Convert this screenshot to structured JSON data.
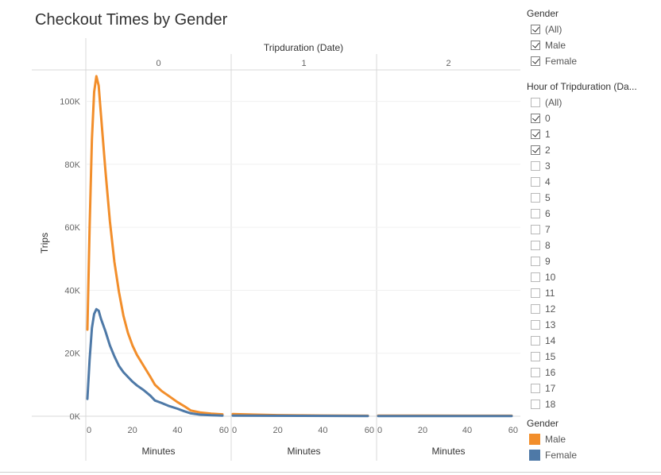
{
  "title": "Checkout Times by Gender",
  "filters": {
    "gender": {
      "title": "Gender",
      "items": [
        {
          "label": "(All)",
          "checked": true
        },
        {
          "label": "Male",
          "checked": true
        },
        {
          "label": "Female",
          "checked": true
        }
      ]
    },
    "hour": {
      "title": "Hour of Tripduration (Da...",
      "items": [
        {
          "label": "(All)",
          "checked": false
        },
        {
          "label": "0",
          "checked": true
        },
        {
          "label": "1",
          "checked": true
        },
        {
          "label": "2",
          "checked": true
        },
        {
          "label": "3",
          "checked": false
        },
        {
          "label": "4",
          "checked": false
        },
        {
          "label": "5",
          "checked": false
        },
        {
          "label": "6",
          "checked": false
        },
        {
          "label": "7",
          "checked": false
        },
        {
          "label": "8",
          "checked": false
        },
        {
          "label": "9",
          "checked": false
        },
        {
          "label": "10",
          "checked": false
        },
        {
          "label": "11",
          "checked": false
        },
        {
          "label": "12",
          "checked": false
        },
        {
          "label": "13",
          "checked": false
        },
        {
          "label": "14",
          "checked": false
        },
        {
          "label": "15",
          "checked": false
        },
        {
          "label": "16",
          "checked": false
        },
        {
          "label": "17",
          "checked": false
        },
        {
          "label": "18",
          "checked": false
        }
      ]
    }
  },
  "legend": {
    "title": "Gender",
    "items": [
      {
        "label": "Male",
        "color": "#f28e2b"
      },
      {
        "label": "Female",
        "color": "#4e79a7"
      }
    ]
  },
  "chart_data": {
    "type": "line",
    "title": "Checkout Times by Gender",
    "column_header": "Tripduration (Date)",
    "panes": [
      "0",
      "1",
      "2"
    ],
    "xlabel": "Minutes",
    "ylabel": "Trips",
    "xlim": [
      0,
      60
    ],
    "ylim": [
      0,
      110000
    ],
    "xticks": [
      "0",
      "20",
      "40",
      "60"
    ],
    "yticks": [
      {
        "value": 0,
        "label": "0K"
      },
      {
        "value": 20000,
        "label": "20K"
      },
      {
        "value": 40000,
        "label": "40K"
      },
      {
        "value": 60000,
        "label": "60K"
      },
      {
        "value": 80000,
        "label": "80K"
      },
      {
        "value": 100000,
        "label": "100K"
      }
    ],
    "grid": true,
    "series": [
      {
        "name": "Male",
        "color": "#f28e2b",
        "panes": [
          {
            "x": [
              0,
              1,
              2,
              3,
              4,
              5,
              6,
              8,
              10,
              12,
              14,
              16,
              18,
              20,
              22,
              25,
              28,
              30,
              33,
              36,
              40,
              43,
              46,
              50,
              55,
              60
            ],
            "y": [
              27500,
              60000,
              88000,
              103000,
              108000,
              105000,
              96000,
              78000,
              62000,
              49000,
              39500,
              32000,
              26500,
              22500,
              19500,
              16000,
              12500,
              10000,
              8000,
              6500,
              4500,
              3200,
              1800,
              1200,
              800,
              600
            ]
          },
          {
            "x": [
              0,
              10,
              20,
              30,
              40,
              50,
              60
            ],
            "y": [
              700,
              500,
              350,
              280,
              220,
              180,
              150
            ]
          },
          {
            "x": [
              0,
              20,
              40,
              60
            ],
            "y": [
              200,
              170,
              150,
              140
            ]
          }
        ]
      },
      {
        "name": "Female",
        "color": "#4e79a7",
        "panes": [
          {
            "x": [
              0,
              1,
              2,
              3,
              4,
              5,
              6,
              8,
              10,
              12,
              14,
              16,
              18,
              20,
              22,
              25,
              28,
              30,
              33,
              36,
              40,
              43,
              46,
              50,
              55,
              60
            ],
            "y": [
              5500,
              18000,
              28000,
              32500,
              34000,
              33500,
              31000,
              27000,
              22500,
              19000,
              16000,
              14000,
              12500,
              11000,
              9800,
              8300,
              6500,
              5000,
              4200,
              3300,
              2400,
              1600,
              900,
              500,
              300,
              200
            ]
          },
          {
            "x": [
              0,
              30,
              60
            ],
            "y": [
              200,
              120,
              80
            ]
          },
          {
            "x": [
              0,
              30,
              60
            ],
            "y": [
              70,
              50,
              40
            ]
          }
        ]
      }
    ]
  }
}
